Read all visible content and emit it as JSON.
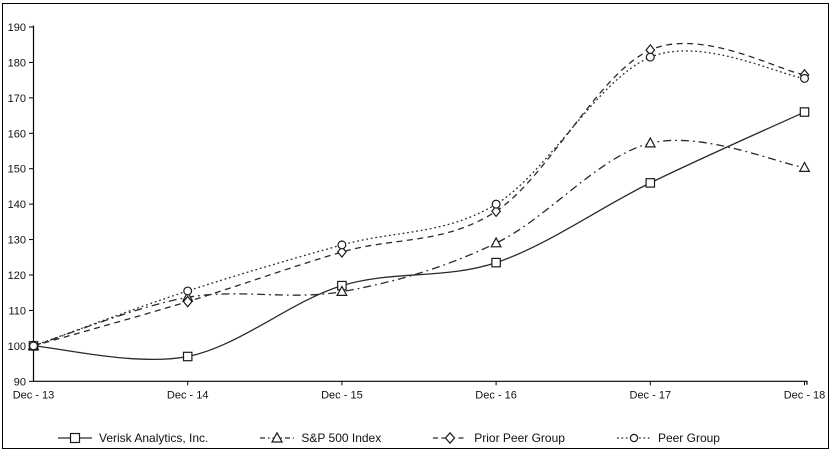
{
  "chart_data": {
    "type": "line",
    "title": "",
    "xlabel": "",
    "ylabel": "",
    "categories": [
      "Dec - 13",
      "Dec - 14",
      "Dec - 15",
      "Dec - 16",
      "Dec - 17",
      "Dec - 18"
    ],
    "y_axis": {
      "min": 90,
      "max": 190,
      "tick_step": 10,
      "tick_labels": [
        "90",
        "100",
        "110",
        "120",
        "130",
        "140",
        "150",
        "160",
        "170",
        "180",
        "190"
      ]
    },
    "grid": false,
    "legend_position": "bottom",
    "line_color": "#2a2a2a",
    "axis_color": "#000000",
    "marker_fill": "#ffffff",
    "marker_stroke": "#1a1a1a",
    "series": [
      {
        "name": "Verisk Analytics, Inc.",
        "marker": "square",
        "line_style": "solid",
        "values": [
          100,
          97,
          117,
          123.5,
          146,
          166
        ]
      },
      {
        "name": "S&P 500 Index",
        "marker": "triangle",
        "line_style": "dash-dot",
        "values": [
          100,
          113.7,
          115.3,
          129,
          157.2,
          150.3
        ]
      },
      {
        "name": "Prior Peer Group",
        "marker": "diamond",
        "line_style": "dashed",
        "values": [
          100,
          112.5,
          126.5,
          138,
          183.5,
          176.5
        ]
      },
      {
        "name": "Peer Group",
        "marker": "circle",
        "line_style": "dotted",
        "values": [
          100,
          115.5,
          128.5,
          140,
          181.5,
          175.5
        ]
      }
    ]
  }
}
